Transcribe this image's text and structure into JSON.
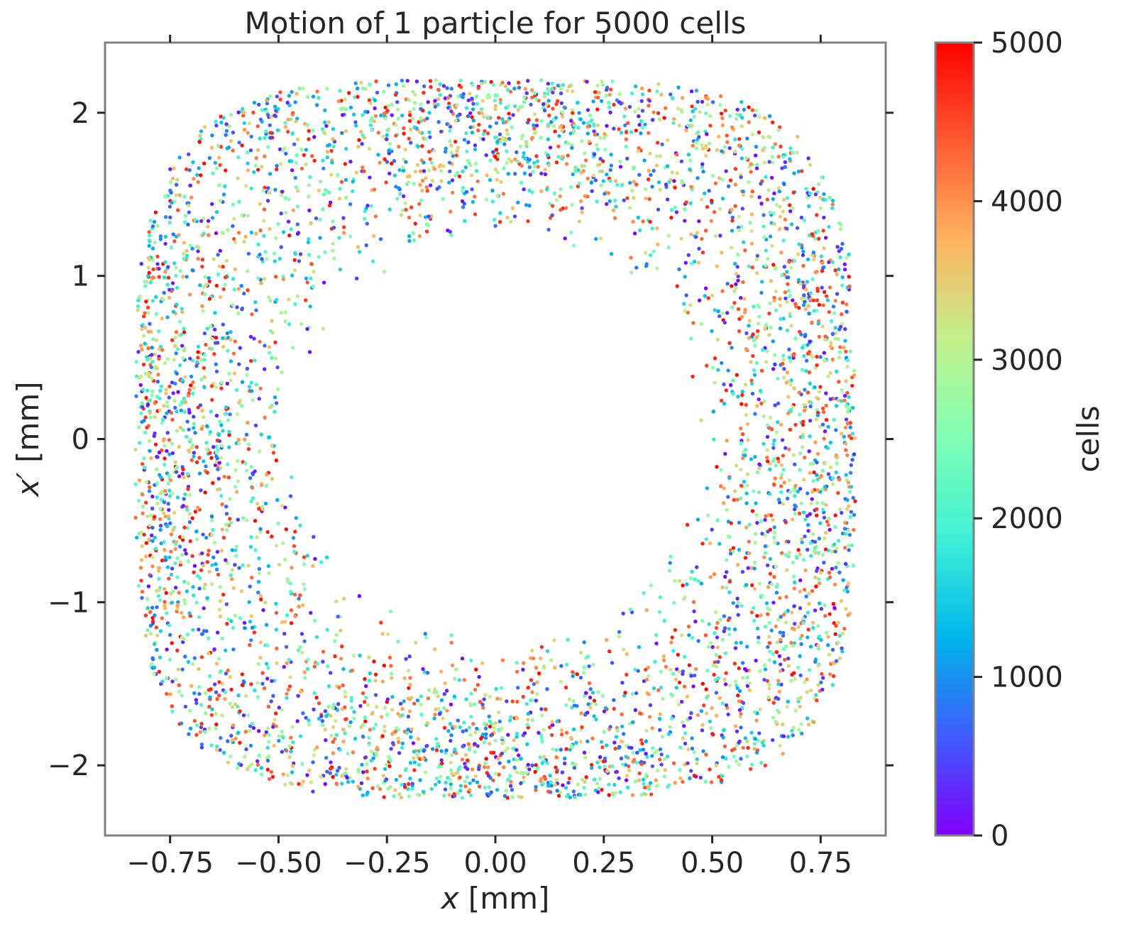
{
  "chart_data": {
    "type": "scatter",
    "title": "Motion of 1 particle for 5000 cells",
    "xlabel": "[mm]",
    "xlabel_symbol": "x",
    "ylabel": "[mm]",
    "ylabel_symbol": "x′",
    "xlim": [
      -0.9,
      0.9
    ],
    "ylim": [
      -2.43,
      2.43
    ],
    "xticks": [
      {
        "value": -0.75,
        "label": "−0.75"
      },
      {
        "value": -0.5,
        "label": "−0.50"
      },
      {
        "value": -0.25,
        "label": "−0.25"
      },
      {
        "value": 0.0,
        "label": "0.00"
      },
      {
        "value": 0.25,
        "label": "0.25"
      },
      {
        "value": 0.5,
        "label": "0.50"
      },
      {
        "value": 0.75,
        "label": "0.75"
      }
    ],
    "yticks": [
      {
        "value": -2,
        "label": "−2"
      },
      {
        "value": -1,
        "label": "−1"
      },
      {
        "value": 0,
        "label": "0"
      },
      {
        "value": 1,
        "label": "1"
      },
      {
        "value": 2,
        "label": "2"
      }
    ],
    "grid": false,
    "point_count": 5000,
    "distribution": {
      "shape": "rounded-square ring",
      "outer_x_extent": 0.83,
      "outer_y_extent": 2.2,
      "inner_x_radius": 0.46,
      "inner_y_radius": 1.22
    },
    "colorbar": {
      "label": "cells",
      "range": [
        0,
        5000
      ],
      "colormap": "rainbow",
      "colors": [
        "#8000ff",
        "#3f5cfb",
        "#00b5eb",
        "#40f0d6",
        "#80ffb4",
        "#c1f08c",
        "#ffb462",
        "#ff5a31",
        "#ff0000"
      ],
      "ticks": [
        {
          "value": 0,
          "label": "0"
        },
        {
          "value": 1000,
          "label": "1000"
        },
        {
          "value": 2000,
          "label": "2000"
        },
        {
          "value": 3000,
          "label": "3000"
        },
        {
          "value": 4000,
          "label": "4000"
        },
        {
          "value": 5000,
          "label": "5000"
        }
      ]
    },
    "frame_color": "#808080"
  }
}
